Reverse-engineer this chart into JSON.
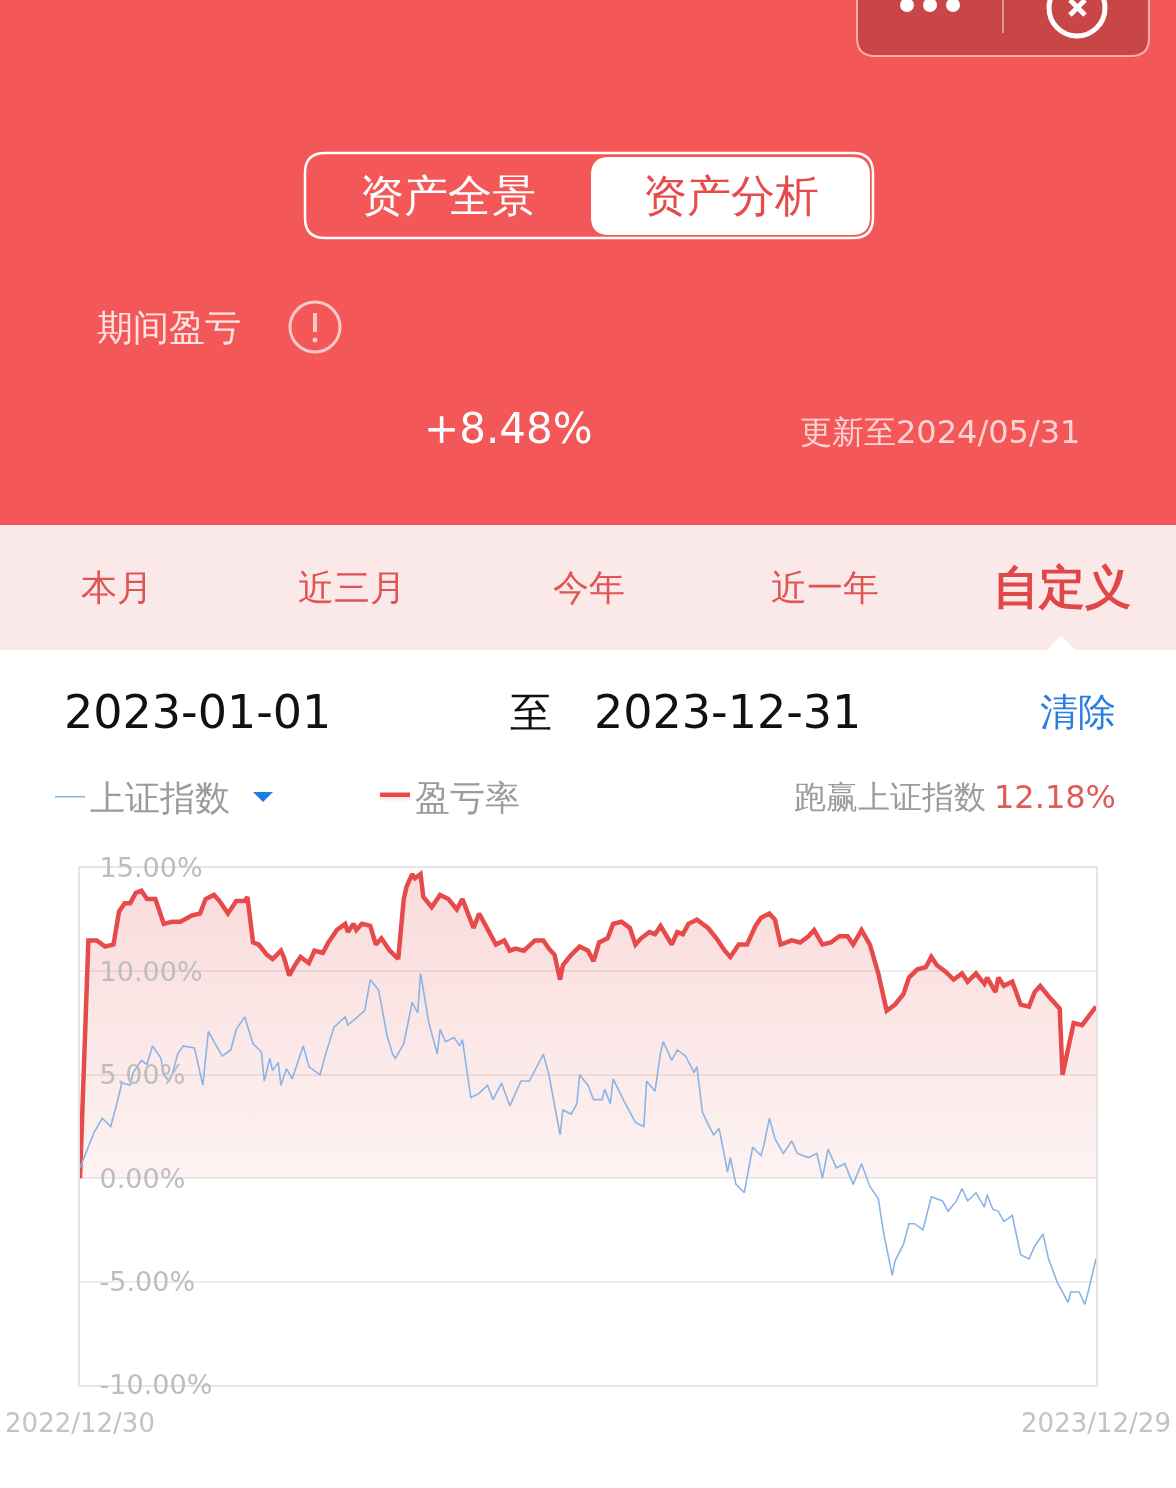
{
  "chart_data": {
    "type": "line",
    "annotations": [
      "资产全景",
      "资产分析",
      "期间盈亏",
      "+8.48%",
      "更新至2024/05/31",
      "本月",
      "近三月",
      "今年",
      "近一年",
      "自定义",
      "2023-01-01",
      "至",
      "2023-12-31",
      "清除",
      "跑赢上证指数",
      "12.18%"
    ],
    "xlim": [
      "2022-12-30",
      "2023-12-29"
    ],
    "xticks": [
      {
        "value": "2022-12-30",
        "label": "2022/12/30"
      },
      {
        "value": "2023-12-29",
        "label": "2023/12/29"
      }
    ],
    "ylim": [
      -10,
      15
    ],
    "yticks": [
      {
        "value": -10,
        "label": "-10.00%"
      },
      {
        "value": -5,
        "label": "-5.00%"
      },
      {
        "value": 0,
        "label": "0.00%"
      },
      {
        "value": 5,
        "label": "5.00%"
      },
      {
        "value": 10,
        "label": "10.00%"
      },
      {
        "value": 15,
        "label": "15.00%"
      }
    ],
    "grid": "y",
    "legend": "top left",
    "series": [
      {
        "name": "上证指数",
        "color": "#8ab4e6",
        "x": [
          "2022-12-30",
          "2023-01-04",
          "2023-01-07",
          "2023-01-10",
          "2023-01-12",
          "2023-01-14",
          "2023-01-17",
          "2023-01-18",
          "2023-01-21",
          "2023-01-23",
          "2023-01-25",
          "2023-01-28",
          "2023-01-29",
          "2023-01-31",
          "2023-02-01",
          "2023-02-03",
          "2023-02-05",
          "2023-02-09",
          "2023-02-12",
          "2023-02-14",
          "2023-02-16",
          "2023-02-19",
          "2023-02-22",
          "2023-02-24",
          "2023-02-27",
          "2023-03-02",
          "2023-03-05",
          "2023-03-06",
          "2023-03-08",
          "2023-03-09",
          "2023-03-11",
          "2023-03-12",
          "2023-03-14",
          "2023-03-16",
          "2023-03-20",
          "2023-03-22",
          "2023-03-26",
          "2023-03-28",
          "2023-03-31",
          "2023-04-04",
          "2023-04-05",
          "2023-04-11",
          "2023-04-13",
          "2023-04-16",
          "2023-04-19",
          "2023-04-21",
          "2023-04-22",
          "2023-04-25",
          "2023-04-28",
          "2023-04-30",
          "2023-05-01",
          "2023-05-04",
          "2023-05-07",
          "2023-05-08",
          "2023-05-10",
          "2023-05-13",
          "2023-05-15",
          "2023-05-16",
          "2023-05-19",
          "2023-05-22",
          "2023-05-25",
          "2023-05-27",
          "2023-05-30",
          "2023-06-02",
          "2023-06-04",
          "2023-06-06",
          "2023-06-09",
          "2023-06-14",
          "2023-06-16",
          "2023-06-20",
          "2023-06-21",
          "2023-06-24",
          "2023-06-26",
          "2023-06-27",
          "2023-06-30",
          "2023-07-02",
          "2023-07-05",
          "2023-07-06",
          "2023-07-08",
          "2023-07-09",
          "2023-07-13",
          "2023-07-17",
          "2023-07-20",
          "2023-07-21",
          "2023-07-24",
          "2023-07-26",
          "2023-07-27",
          "2023-07-30",
          "2023-08-01",
          "2023-08-04",
          "2023-08-07",
          "2023-08-08",
          "2023-08-10",
          "2023-08-12",
          "2023-08-14",
          "2023-08-16",
          "2023-08-19",
          "2023-08-20",
          "2023-08-22",
          "2023-08-25",
          "2023-08-28",
          "2023-08-31",
          "2023-09-01",
          "2023-09-03",
          "2023-09-05",
          "2023-09-08",
          "2023-09-11",
          "2023-09-13",
          "2023-09-17",
          "2023-09-20",
          "2023-09-22",
          "2023-09-24",
          "2023-09-27",
          "2023-09-30",
          "2023-10-03",
          "2023-10-06",
          "2023-10-09",
          "2023-10-12",
          "2023-10-14",
          "2023-10-17",
          "2023-10-18",
          "2023-10-21",
          "2023-10-23",
          "2023-10-25",
          "2023-10-28",
          "2023-10-31",
          "2023-11-04",
          "2023-11-06",
          "2023-11-09",
          "2023-11-11",
          "2023-11-13",
          "2023-11-16",
          "2023-11-19",
          "2023-11-20",
          "2023-11-22",
          "2023-11-24",
          "2023-11-26",
          "2023-11-29",
          "2023-12-02",
          "2023-12-05",
          "2023-12-07",
          "2023-12-10",
          "2023-12-12",
          "2023-12-15",
          "2023-12-19",
          "2023-12-20",
          "2023-12-23",
          "2023-12-25",
          "2023-12-26",
          "2023-12-29"
        ],
        "values": [
          0.5,
          2.2,
          2.9,
          2.5,
          3.5,
          4.6,
          4.5,
          5.1,
          5.7,
          5.5,
          6.4,
          5.8,
          5.0,
          4.7,
          5.0,
          6.0,
          6.4,
          6.3,
          4.5,
          7.1,
          6.6,
          5.9,
          6.2,
          7.2,
          7.8,
          6.5,
          6.1,
          4.7,
          5.8,
          5.2,
          5.6,
          4.5,
          5.3,
          4.8,
          6.4,
          5.4,
          5.0,
          6.0,
          7.3,
          7.8,
          7.4,
          8.1,
          9.6,
          9.1,
          6.9,
          6.0,
          5.8,
          6.5,
          8.5,
          8.0,
          9.9,
          7.5,
          6.0,
          7.2,
          6.6,
          6.8,
          6.4,
          6.7,
          3.9,
          4.1,
          4.5,
          3.8,
          4.6,
          3.5,
          4.1,
          4.7,
          4.7,
          6.0,
          5.0,
          2.1,
          3.3,
          3.1,
          3.6,
          5.0,
          4.5,
          3.8,
          3.8,
          4.3,
          3.6,
          4.8,
          3.7,
          2.7,
          2.5,
          4.7,
          4.2,
          6.1,
          6.6,
          5.7,
          6.2,
          5.9,
          5.1,
          5.4,
          3.2,
          2.6,
          2.1,
          2.4,
          0.3,
          1.0,
          -0.3,
          -0.7,
          1.5,
          1.1,
          1.6,
          2.9,
          1.9,
          1.2,
          1.8,
          1.2,
          1.0,
          1.2,
          0.0,
          1.4,
          0.5,
          0.7,
          -0.3,
          0.7,
          -0.4,
          -1.0,
          -2.7,
          -4.7,
          -4.0,
          -3.2,
          -2.2,
          -2.2,
          -2.5,
          -0.9,
          -1.1,
          -1.6,
          -1.1,
          -0.5,
          -1.1,
          -0.7,
          -1.4,
          -0.8,
          -1.5,
          -1.6,
          -2.1,
          -1.8,
          -3.7,
          -3.9,
          -3.3,
          -2.7,
          -3.9,
          -5.0,
          -6.0,
          -5.5,
          -5.5,
          -6.1,
          -5.6,
          -3.9
        ]
      },
      {
        "name": "盈亏率",
        "color": "#e64a4a",
        "type": "area",
        "x": [
          "2022-12-30",
          "2023-01-02",
          "2023-01-05",
          "2023-01-08",
          "2023-01-11",
          "2023-01-13",
          "2023-01-15",
          "2023-01-17",
          "2023-01-19",
          "2023-01-21",
          "2023-01-23",
          "2023-01-26",
          "2023-01-29",
          "2023-02-01",
          "2023-02-04",
          "2023-02-08",
          "2023-02-11",
          "2023-02-13",
          "2023-02-16",
          "2023-02-18",
          "2023-02-21",
          "2023-02-24",
          "2023-02-27",
          "2023-02-28",
          "2023-03-02",
          "2023-03-04",
          "2023-03-07",
          "2023-03-09",
          "2023-03-12",
          "2023-03-13",
          "2023-03-15",
          "2023-03-17",
          "2023-03-19",
          "2023-03-22",
          "2023-03-24",
          "2023-03-27",
          "2023-03-29",
          "2023-04-01",
          "2023-04-04",
          "2023-04-05",
          "2023-04-07",
          "2023-04-08",
          "2023-04-10",
          "2023-04-13",
          "2023-04-15",
          "2023-04-17",
          "2023-04-20",
          "2023-04-23",
          "2023-04-25",
          "2023-04-26",
          "2023-04-28",
          "2023-04-29",
          "2023-05-01",
          "2023-05-02",
          "2023-05-05",
          "2023-05-08",
          "2023-05-11",
          "2023-05-14",
          "2023-05-16",
          "2023-05-20",
          "2023-05-22",
          "2023-05-24",
          "2023-05-28",
          "2023-05-31",
          "2023-06-02",
          "2023-06-04",
          "2023-06-07",
          "2023-06-11",
          "2023-06-14",
          "2023-06-16",
          "2023-06-18",
          "2023-06-20",
          "2023-06-21",
          "2023-06-24",
          "2023-06-27",
          "2023-06-30",
          "2023-07-02",
          "2023-07-04",
          "2023-07-07",
          "2023-07-09",
          "2023-07-12",
          "2023-07-15",
          "2023-07-17",
          "2023-07-19",
          "2023-07-22",
          "2023-07-24",
          "2023-07-26",
          "2023-07-30",
          "2023-08-01",
          "2023-08-03",
          "2023-08-05",
          "2023-08-08",
          "2023-08-12",
          "2023-08-15",
          "2023-08-18",
          "2023-08-20",
          "2023-08-23",
          "2023-08-26",
          "2023-08-29",
          "2023-08-31",
          "2023-09-03",
          "2023-09-05",
          "2023-09-07",
          "2023-09-11",
          "2023-09-14",
          "2023-09-17",
          "2023-09-19",
          "2023-09-22",
          "2023-09-25",
          "2023-09-28",
          "2023-10-01",
          "2023-10-03",
          "2023-10-06",
          "2023-10-09",
          "2023-10-12",
          "2023-10-15",
          "2023-10-18",
          "2023-10-21",
          "2023-10-23",
          "2023-10-26",
          "2023-10-29",
          "2023-10-31",
          "2023-11-02",
          "2023-11-05",
          "2023-11-08",
          "2023-11-11",
          "2023-11-13",
          "2023-11-16",
          "2023-11-19",
          "2023-11-20",
          "2023-11-23",
          "2023-11-24",
          "2023-11-26",
          "2023-11-29",
          "2023-12-02",
          "2023-12-05",
          "2023-12-07",
          "2023-12-09",
          "2023-12-12",
          "2023-12-16",
          "2023-12-17",
          "2023-12-21",
          "2023-12-24",
          "2023-12-29"
        ],
        "values": [
          0.0,
          11.5,
          11.5,
          11.2,
          11.3,
          12.9,
          13.3,
          13.3,
          13.8,
          13.9,
          13.5,
          13.5,
          12.3,
          12.4,
          12.4,
          12.7,
          12.8,
          13.5,
          13.7,
          13.4,
          12.8,
          13.4,
          13.4,
          13.6,
          11.4,
          11.3,
          10.8,
          10.6,
          11.0,
          10.7,
          9.8,
          10.3,
          10.7,
          10.4,
          11.0,
          10.9,
          11.4,
          12.0,
          12.3,
          11.9,
          12.3,
          12.0,
          12.3,
          12.2,
          11.3,
          11.6,
          11.0,
          10.6,
          13.5,
          14.1,
          14.7,
          14.5,
          14.7,
          13.6,
          13.1,
          13.7,
          13.5,
          13.0,
          13.5,
          12.1,
          12.8,
          12.3,
          11.3,
          11.5,
          11.0,
          11.1,
          11.0,
          11.5,
          11.5,
          11.1,
          10.8,
          9.6,
          10.3,
          10.8,
          11.2,
          11.0,
          10.5,
          11.4,
          11.6,
          12.3,
          12.4,
          12.1,
          11.3,
          11.6,
          11.9,
          11.8,
          12.2,
          11.3,
          11.9,
          11.8,
          12.3,
          12.5,
          12.1,
          11.6,
          11.0,
          10.7,
          11.3,
          11.3,
          12.2,
          12.6,
          12.8,
          12.5,
          11.3,
          11.5,
          11.4,
          11.7,
          12.0,
          11.3,
          11.4,
          11.7,
          11.7,
          11.3,
          12.0,
          11.3,
          9.9,
          8.1,
          8.4,
          8.9,
          9.7,
          10.1,
          10.2,
          10.7,
          10.3,
          10.0,
          9.6,
          9.9,
          9.5,
          9.9,
          9.4,
          9.7,
          9.0,
          9.7,
          9.3,
          9.5,
          8.4,
          8.3,
          9.0,
          9.3,
          8.8,
          8.2,
          5.0,
          7.5,
          7.4,
          8.3
        ]
      }
    ]
  }
}
